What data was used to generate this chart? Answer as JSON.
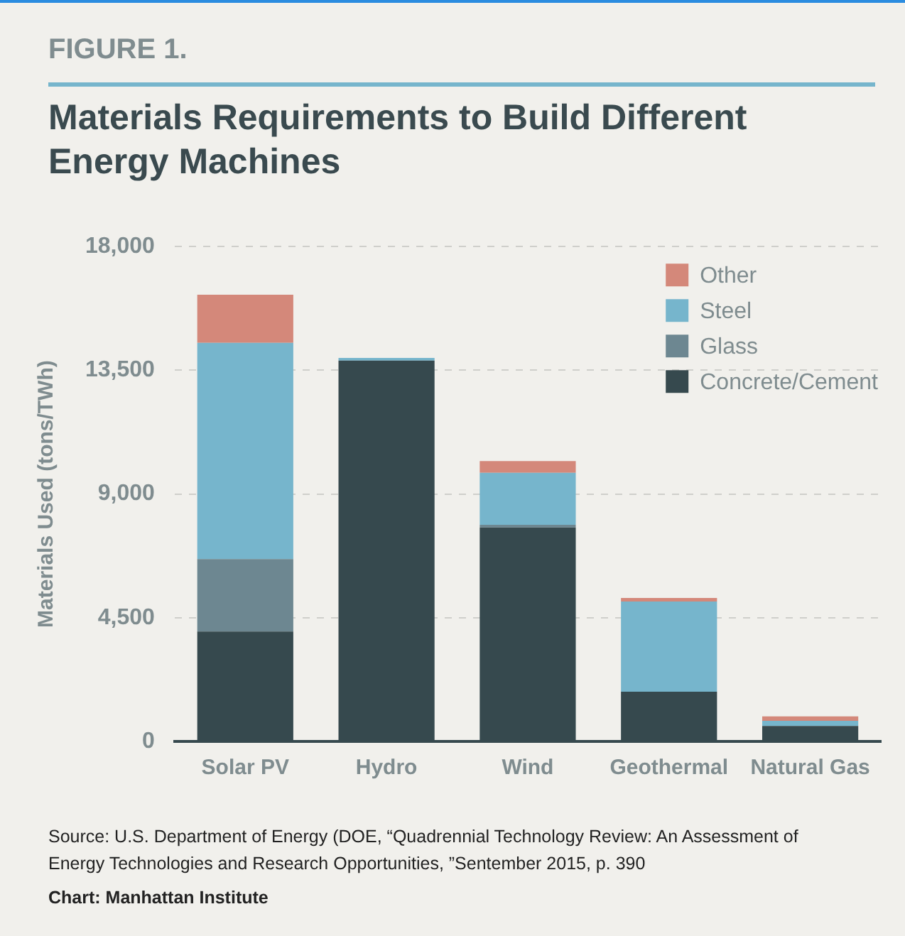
{
  "chart_data": {
    "type": "bar",
    "title": "Materials Requirements to Build Different Energy Machines",
    "ylabel": "Materials Used (tons/TWh)",
    "annotations": [
      "FIGURE 1.",
      "Source: U.S. Department of Energy (DOE, “Quadrennial Technology Review: An Assessment of Energy Technologies and Research Opportunities, ”Sentember 2015, p. 390",
      "Chart: Manhattan Institute"
    ],
    "categories": [
      "Solar PV",
      "Hydro",
      "Wind",
      "Geothermal",
      "Natural Gas"
    ],
    "stacked": true,
    "series": [
      {
        "name": "Concrete/Cement",
        "color": "#36494e",
        "values": [
          4000,
          13850,
          7780,
          1810,
          560
        ]
      },
      {
        "name": "Glass",
        "color": "#6d8791",
        "values": [
          2630,
          0,
          100,
          0,
          0
        ]
      },
      {
        "name": "Steel",
        "color": "#76b5cc",
        "values": [
          7870,
          100,
          1890,
          3280,
          190
        ]
      },
      {
        "name": "Other",
        "color": "#d4887a",
        "values": [
          1750,
          0,
          430,
          130,
          160
        ]
      }
    ],
    "ylim": [
      0,
      18000
    ],
    "yticks": [
      0,
      {
        "value": 4500,
        "label": "4,500"
      },
      {
        "value": 9000,
        "label": "9,000"
      },
      {
        "value": 13500,
        "label": "13,500"
      },
      {
        "value": 18000,
        "label": "18,000"
      }
    ],
    "grid": "y",
    "legend": "top right"
  }
}
